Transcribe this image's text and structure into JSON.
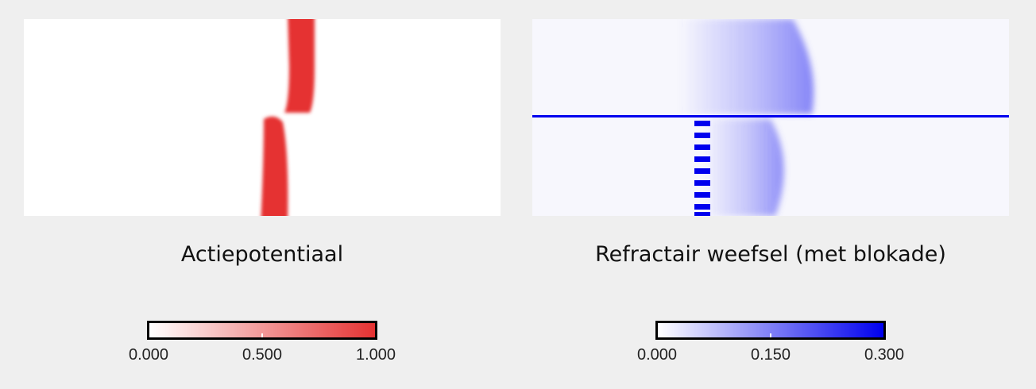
{
  "left_panel": {
    "caption": "Actiepotentiaal",
    "colorbar": {
      "ticks": [
        "0.000",
        "0.500",
        "1.000"
      ],
      "color_min": "#ffffff",
      "color_max": "#e53232"
    }
  },
  "right_panel": {
    "caption": "Refractair weefsel (met blokade)",
    "colorbar": {
      "ticks": [
        "0.000",
        "0.150",
        "0.300"
      ],
      "color_min": "#ffffff",
      "color_max": "#0000ee"
    },
    "line_color": "#0000ee"
  }
}
